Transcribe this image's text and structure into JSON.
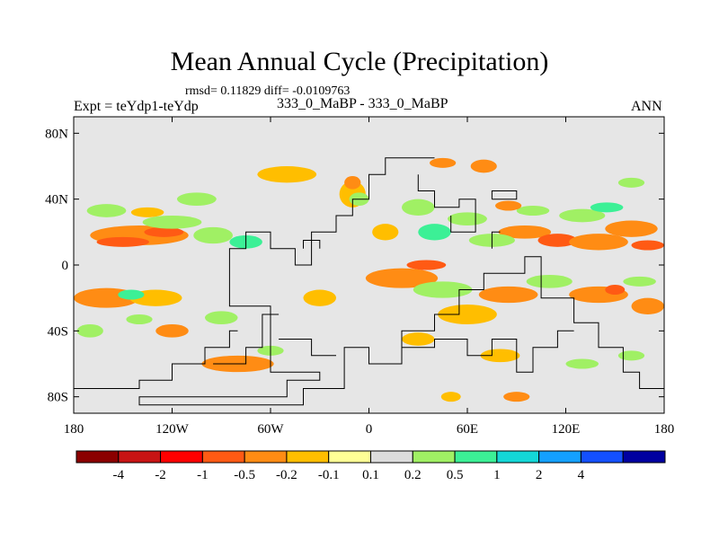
{
  "title": "Mean Annual Cycle (Precipitation)",
  "stats_line": "rmsd= 0.11829 diff= -0.0109763",
  "expt_label": "Expt = teYdp1-teYdp",
  "subtitle": "333_0_MaBP - 333_0_MaBP",
  "season": "ANN",
  "axes": {
    "lat_ticks": [
      {
        "value": 80,
        "label": "80N"
      },
      {
        "value": 40,
        "label": "40N"
      },
      {
        "value": 0,
        "label": "0"
      },
      {
        "value": -40,
        "label": "40S"
      },
      {
        "value": -80,
        "label": "80S"
      }
    ],
    "lon_ticks": [
      {
        "value": -180,
        "label": "180"
      },
      {
        "value": -120,
        "label": "120W"
      },
      {
        "value": -60,
        "label": "60W"
      },
      {
        "value": 0,
        "label": "0"
      },
      {
        "value": 60,
        "label": "60E"
      },
      {
        "value": 120,
        "label": "120E"
      },
      {
        "value": 180,
        "label": "180"
      }
    ]
  },
  "colorbar": {
    "colors": [
      "#8b0000",
      "#c81414",
      "#ff0000",
      "#ff5a14",
      "#ff8c14",
      "#ffbe00",
      "#ffff96",
      "#dcdcdc",
      "#a0f064",
      "#3cf096",
      "#14d7d7",
      "#14a0ff",
      "#1450ff",
      "#0000a0"
    ],
    "labels": [
      "-4",
      "-2",
      "-1",
      "-0.5",
      "-0.2",
      "-0.1",
      "0.1",
      "0.2",
      "0.5",
      "1",
      "2",
      "4"
    ]
  },
  "background_color": "#e6e6e6",
  "chart_data": {
    "type": "heatmap",
    "title": "Mean Annual Cycle (Precipitation)",
    "xlim": [
      -180,
      180
    ],
    "ylim": [
      -90,
      90
    ],
    "xlabel": "",
    "ylabel": "",
    "anomaly_patches": [
      {
        "lon": -140,
        "lat": 18,
        "rx": 30,
        "ry": 6,
        "level": "-0.2"
      },
      {
        "lon": -150,
        "lat": 14,
        "rx": 16,
        "ry": 3,
        "level": "-0.5"
      },
      {
        "lon": -125,
        "lat": 20,
        "rx": 12,
        "ry": 3,
        "level": "-0.5"
      },
      {
        "lon": -120,
        "lat": 26,
        "rx": 18,
        "ry": 4,
        "level": "0.1"
      },
      {
        "lon": -95,
        "lat": 18,
        "rx": 12,
        "ry": 5,
        "level": "0.1"
      },
      {
        "lon": -75,
        "lat": 14,
        "rx": 10,
        "ry": 4,
        "level": "0.2"
      },
      {
        "lon": -160,
        "lat": 33,
        "rx": 12,
        "ry": 4,
        "level": "0.1"
      },
      {
        "lon": -135,
        "lat": 32,
        "rx": 10,
        "ry": 3,
        "level": "-0.1"
      },
      {
        "lon": -105,
        "lat": 40,
        "rx": 12,
        "ry": 4,
        "level": "0.1"
      },
      {
        "lon": -50,
        "lat": 55,
        "rx": 18,
        "ry": 5,
        "level": "-0.1"
      },
      {
        "lon": -10,
        "lat": 43,
        "rx": 8,
        "ry": 8,
        "level": "-0.1"
      },
      {
        "lon": -10,
        "lat": 50,
        "rx": 5,
        "ry": 4,
        "level": "-0.2"
      },
      {
        "lon": -6,
        "lat": 40,
        "rx": 6,
        "ry": 4,
        "level": "0.1"
      },
      {
        "lon": -160,
        "lat": -20,
        "rx": 20,
        "ry": 6,
        "level": "-0.2"
      },
      {
        "lon": -130,
        "lat": -20,
        "rx": 16,
        "ry": 5,
        "level": "-0.1"
      },
      {
        "lon": -145,
        "lat": -18,
        "rx": 8,
        "ry": 3,
        "level": "0.2"
      },
      {
        "lon": -170,
        "lat": -40,
        "rx": 8,
        "ry": 4,
        "level": "0.1"
      },
      {
        "lon": -120,
        "lat": -40,
        "rx": 10,
        "ry": 4,
        "level": "-0.2"
      },
      {
        "lon": -140,
        "lat": -33,
        "rx": 8,
        "ry": 3,
        "level": "0.1"
      },
      {
        "lon": -90,
        "lat": -32,
        "rx": 10,
        "ry": 4,
        "level": "0.1"
      },
      {
        "lon": -80,
        "lat": -60,
        "rx": 22,
        "ry": 5,
        "level": "-0.2"
      },
      {
        "lon": -60,
        "lat": -52,
        "rx": 8,
        "ry": 3,
        "level": "0.1"
      },
      {
        "lon": -30,
        "lat": -20,
        "rx": 10,
        "ry": 5,
        "level": "-0.1"
      },
      {
        "lon": 20,
        "lat": -8,
        "rx": 22,
        "ry": 6,
        "level": "-0.2"
      },
      {
        "lon": 35,
        "lat": 0,
        "rx": 12,
        "ry": 3,
        "level": "-0.5"
      },
      {
        "lon": 45,
        "lat": -15,
        "rx": 18,
        "ry": 5,
        "level": "0.1"
      },
      {
        "lon": 60,
        "lat": -30,
        "rx": 18,
        "ry": 6,
        "level": "-0.1"
      },
      {
        "lon": 85,
        "lat": -18,
        "rx": 18,
        "ry": 5,
        "level": "-0.2"
      },
      {
        "lon": 110,
        "lat": -10,
        "rx": 14,
        "ry": 4,
        "level": "0.1"
      },
      {
        "lon": 140,
        "lat": -18,
        "rx": 18,
        "ry": 5,
        "level": "-0.2"
      },
      {
        "lon": 150,
        "lat": -15,
        "rx": 6,
        "ry": 3,
        "level": "-0.5"
      },
      {
        "lon": 170,
        "lat": -25,
        "rx": 10,
        "ry": 5,
        "level": "-0.2"
      },
      {
        "lon": 165,
        "lat": -10,
        "rx": 10,
        "ry": 3,
        "level": "0.1"
      },
      {
        "lon": 95,
        "lat": 20,
        "rx": 16,
        "ry": 4,
        "level": "-0.2"
      },
      {
        "lon": 115,
        "lat": 15,
        "rx": 12,
        "ry": 4,
        "level": "-0.5"
      },
      {
        "lon": 140,
        "lat": 14,
        "rx": 18,
        "ry": 5,
        "level": "-0.2"
      },
      {
        "lon": 160,
        "lat": 22,
        "rx": 16,
        "ry": 5,
        "level": "-0.2"
      },
      {
        "lon": 170,
        "lat": 12,
        "rx": 10,
        "ry": 3,
        "level": "-0.5"
      },
      {
        "lon": 75,
        "lat": 15,
        "rx": 14,
        "ry": 4,
        "level": "0.1"
      },
      {
        "lon": 60,
        "lat": 28,
        "rx": 12,
        "ry": 4,
        "level": "0.1"
      },
      {
        "lon": 130,
        "lat": 30,
        "rx": 14,
        "ry": 4,
        "level": "0.1"
      },
      {
        "lon": 100,
        "lat": 33,
        "rx": 10,
        "ry": 3,
        "level": "0.1"
      },
      {
        "lon": 145,
        "lat": 35,
        "rx": 10,
        "ry": 3,
        "level": "0.2"
      },
      {
        "lon": 85,
        "lat": 36,
        "rx": 8,
        "ry": 3,
        "level": "-0.2"
      },
      {
        "lon": 30,
        "lat": 35,
        "rx": 10,
        "ry": 5,
        "level": "0.1"
      },
      {
        "lon": 40,
        "lat": 20,
        "rx": 10,
        "ry": 5,
        "level": "0.2"
      },
      {
        "lon": 10,
        "lat": 20,
        "rx": 8,
        "ry": 5,
        "level": "-0.1"
      },
      {
        "lon": 70,
        "lat": 60,
        "rx": 8,
        "ry": 4,
        "level": "-0.2"
      },
      {
        "lon": 45,
        "lat": 62,
        "rx": 8,
        "ry": 3,
        "level": "-0.2"
      },
      {
        "lon": 160,
        "lat": 50,
        "rx": 8,
        "ry": 3,
        "level": "0.1"
      },
      {
        "lon": 30,
        "lat": -45,
        "rx": 10,
        "ry": 4,
        "level": "-0.1"
      },
      {
        "lon": 80,
        "lat": -55,
        "rx": 12,
        "ry": 4,
        "level": "-0.1"
      },
      {
        "lon": 130,
        "lat": -60,
        "rx": 10,
        "ry": 3,
        "level": "0.1"
      },
      {
        "lon": 160,
        "lat": -55,
        "rx": 8,
        "ry": 3,
        "level": "0.1"
      },
      {
        "lon": 90,
        "lat": -80,
        "rx": 8,
        "ry": 3,
        "level": "-0.2"
      },
      {
        "lon": 50,
        "lat": -80,
        "rx": 6,
        "ry": 3,
        "level": "-0.1"
      }
    ],
    "coastlines": [
      [
        [
          40,
          65
        ],
        [
          10,
          65
        ],
        [
          10,
          55
        ],
        [
          0,
          55
        ],
        [
          0,
          40
        ],
        [
          -10,
          40
        ],
        [
          -10,
          30
        ],
        [
          -20,
          30
        ],
        [
          -20,
          20
        ],
        [
          -35,
          20
        ],
        [
          -35,
          0
        ],
        [
          -45,
          0
        ],
        [
          -45,
          10
        ],
        [
          -60,
          10
        ],
        [
          -60,
          20
        ],
        [
          -75,
          20
        ],
        [
          -75,
          10
        ],
        [
          -85,
          10
        ],
        [
          -85,
          -25
        ],
        [
          -60,
          -25
        ],
        [
          -60,
          -65
        ],
        [
          -30,
          -65
        ],
        [
          -30,
          -70
        ],
        [
          -50,
          -70
        ],
        [
          -50,
          -80
        ],
        [
          -140,
          -80
        ],
        [
          -140,
          -85
        ],
        [
          -40,
          -85
        ],
        [
          -40,
          -75
        ],
        [
          -15,
          -75
        ],
        [
          -15,
          -50
        ],
        [
          0,
          -50
        ],
        [
          0,
          -60
        ],
        [
          20,
          -60
        ],
        [
          20,
          -40
        ],
        [
          40,
          -40
        ],
        [
          40,
          -30
        ],
        [
          55,
          -30
        ],
        [
          55,
          -15
        ],
        [
          70,
          -15
        ],
        [
          70,
          -5
        ],
        [
          95,
          -5
        ],
        [
          95,
          5
        ],
        [
          105,
          5
        ],
        [
          105,
          -20
        ],
        [
          125,
          -20
        ],
        [
          125,
          -35
        ],
        [
          140,
          -35
        ],
        [
          140,
          -50
        ],
        [
          155,
          -50
        ],
        [
          155,
          -65
        ],
        [
          165,
          -65
        ],
        [
          165,
          -75
        ],
        [
          180,
          -75
        ]
      ],
      [
        [
          20,
          -60
        ],
        [
          20,
          -50
        ],
        [
          40,
          -50
        ],
        [
          40,
          -45
        ],
        [
          60,
          -45
        ],
        [
          60,
          -55
        ],
        [
          75,
          -55
        ],
        [
          75,
          -45
        ],
        [
          90,
          -45
        ],
        [
          90,
          -65
        ],
        [
          100,
          -65
        ],
        [
          100,
          -50
        ],
        [
          115,
          -50
        ],
        [
          115,
          -40
        ],
        [
          125,
          -40
        ]
      ],
      [
        [
          -180,
          -75
        ],
        [
          -140,
          -75
        ],
        [
          -140,
          -70
        ],
        [
          -120,
          -70
        ],
        [
          -120,
          -60
        ],
        [
          -100,
          -60
        ],
        [
          -100,
          -50
        ],
        [
          -85,
          -50
        ],
        [
          -85,
          -40
        ],
        [
          -80,
          -40
        ]
      ],
      [
        [
          -95,
          -60
        ],
        [
          -75,
          -60
        ],
        [
          -75,
          -50
        ],
        [
          -65,
          -50
        ],
        [
          -65,
          -30
        ],
        [
          -55,
          -30
        ]
      ],
      [
        [
          -55,
          -45
        ],
        [
          -35,
          -45
        ],
        [
          -35,
          -55
        ],
        [
          -20,
          -55
        ]
      ],
      [
        [
          -40,
          10
        ],
        [
          -40,
          15
        ],
        [
          -30,
          15
        ],
        [
          -30,
          10
        ]
      ],
      [
        [
          30,
          55
        ],
        [
          30,
          45
        ],
        [
          40,
          45
        ],
        [
          40,
          35
        ],
        [
          55,
          35
        ],
        [
          55,
          40
        ],
        [
          65,
          40
        ],
        [
          65,
          20
        ],
        [
          50,
          20
        ],
        [
          50,
          30
        ]
      ],
      [
        [
          75,
          40
        ],
        [
          90,
          40
        ],
        [
          90,
          45
        ],
        [
          75,
          45
        ],
        [
          75,
          40
        ]
      ],
      [
        [
          75,
          10
        ],
        [
          75,
          20
        ],
        [
          80,
          20
        ]
      ]
    ]
  }
}
